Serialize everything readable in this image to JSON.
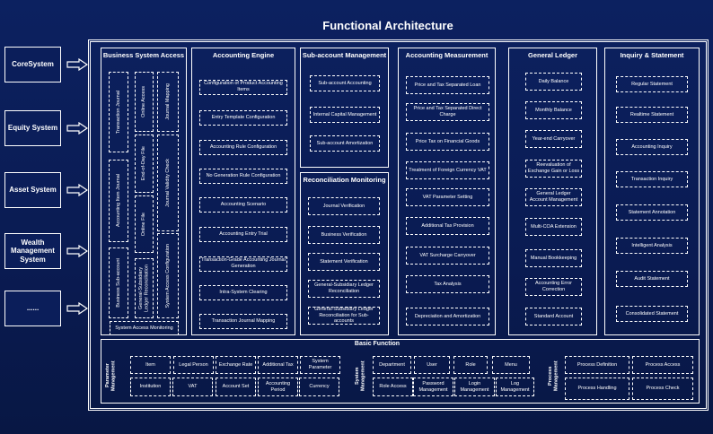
{
  "title": "Functional Architecture",
  "source_systems": [
    "CoreSystem",
    "Equity System",
    "Asset System",
    "Wealth Management System",
    "......"
  ],
  "business_system_access": {
    "title": "Business System Access",
    "items": [
      "Transaction Journal",
      "Accounting Item Journal",
      "Business Sub-account",
      "Online Access",
      "End-of-Day File",
      "Online File",
      "General-Subsidiary Ledger Reconciliation",
      "Journal Mapping",
      "Journal Validity Check",
      "System Access Configuration",
      "System Access Monitoring"
    ]
  },
  "accounting_engine": {
    "title": "Accounting Engine",
    "items": [
      "Configuration of Product Accounting Items",
      "Entry Template Configuration",
      "Accounting Rule Configuration",
      "No Generation Rule Configuration",
      "Accounting Scenario",
      "Accounting Entry Trial",
      "Transaction-Grade Accounting Journal Generation",
      "Intra-System Clearing",
      "Transaction Journal Mapping"
    ]
  },
  "sub_account_management": {
    "title": "Sub-account Management",
    "items": [
      "Sub-account Accounting",
      "Internal Capital Management",
      "Sub-account Amortization"
    ]
  },
  "reconciliation_monitoring": {
    "title": "Reconciliation Monitoring",
    "items": [
      "Journal Verification",
      "Business Verification",
      "Statement Verification",
      "General-Subsidiary Ledger Reconciliation",
      "General-Subsidiary Ledger Reconciliation for Sub-accounts"
    ]
  },
  "accounting_measurement": {
    "title": "Accounting Measurement",
    "items": [
      "Price and Tax Separated Loan",
      "Price and Tax Separated Direct Charge",
      "Price Tax on Financial Goods",
      "Treatment of Foreign Currency VAT",
      "VAT Parameter Setting",
      "Additional Tax Provision",
      "VAT Surcharge Carryover",
      "Tax Analysis",
      "Depreciation and Amortization"
    ]
  },
  "general_ledger": {
    "title": "General Ledger",
    "items": [
      "Daily Balance",
      "Monthly Balance",
      "Year-end Carryover",
      "Reevaluation of Exchange Gain or Loss",
      "General Ledger Account Management",
      "Multi-COA Extension",
      "Manual Bookkeeping",
      "Accounting Error Correction",
      "Standard Account"
    ]
  },
  "inquiry_statement": {
    "title": "Inquiry & Statement",
    "items": [
      "Regular Statement",
      "Realtime Statement",
      "Accounting Inquiry",
      "Transaction Inquiry",
      "Statement Annotation",
      "Intelligent Analysis",
      "Audit Statement",
      "Consolidated Statement"
    ]
  },
  "basic_function": {
    "title": "Basic Function",
    "parameter_management": {
      "label": "Parameter Management",
      "items": [
        "Item",
        "Legal Person",
        "Exchange Rate",
        "Additional Tax",
        "System Parameter",
        "Institution",
        "VAT",
        "Account Set",
        "Accounting Period",
        "Currency"
      ]
    },
    "system_management": {
      "label": "System Management",
      "items": [
        "Department",
        "User",
        "Role",
        "Menu",
        "Role Access",
        "Password Management",
        "Login Management",
        "Log Management"
      ]
    },
    "process_management": {
      "label": "Process Management",
      "items": [
        "Process Definition",
        "Process Access",
        "Process Handling",
        "Process Check"
      ]
    }
  }
}
